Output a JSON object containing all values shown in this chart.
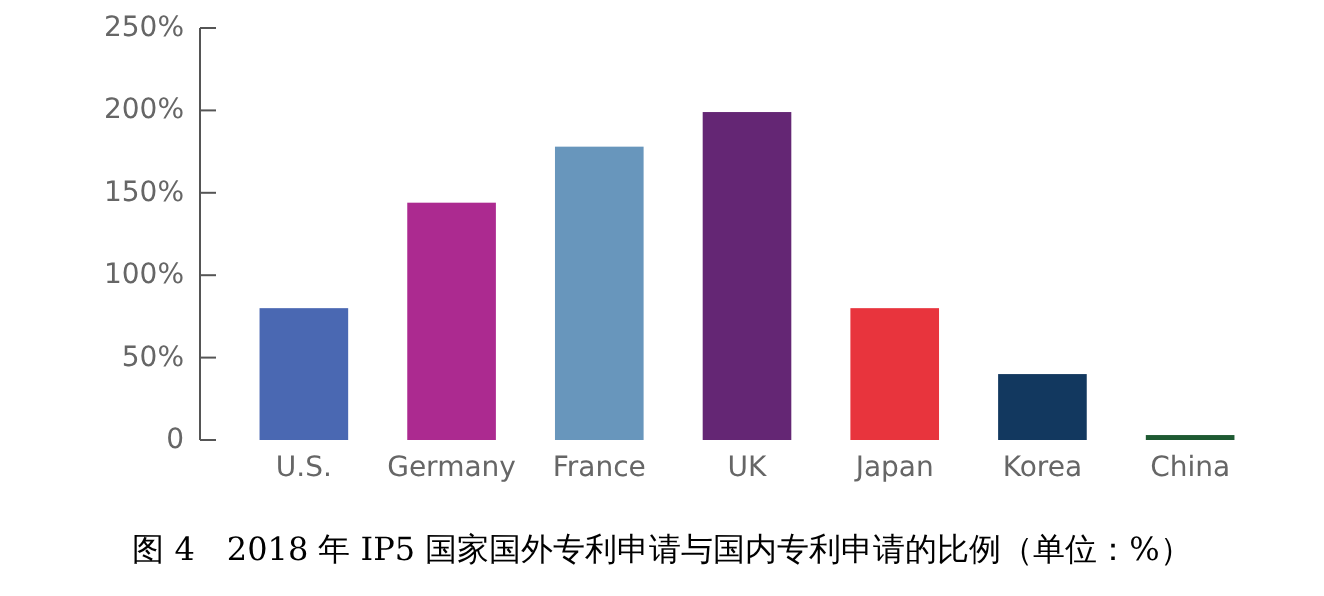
{
  "chart_data": {
    "type": "bar",
    "title": "图 4　2018 年 IP5 国家国外专利申请与国内专利申请的比例（单位：%）",
    "categories": [
      "U.S.",
      "Germany",
      "France",
      "UK",
      "Japan",
      "Korea",
      "China"
    ],
    "values": [
      80,
      144,
      178,
      199,
      80,
      40,
      3
    ],
    "colors": [
      "#4a68b2",
      "#ac2a90",
      "#6896bc",
      "#642674",
      "#e8343d",
      "#12385f",
      "#1e5a32"
    ],
    "ylim": [
      0,
      250
    ],
    "yticks": [
      0,
      {
        "value": 50,
        "label": "50%"
      },
      {
        "value": 100,
        "label": "100%"
      },
      {
        "value": 150,
        "label": "150%"
      },
      {
        "value": 200,
        "label": "200%"
      },
      {
        "value": 250,
        "label": "250%"
      }
    ],
    "grid": false
  }
}
